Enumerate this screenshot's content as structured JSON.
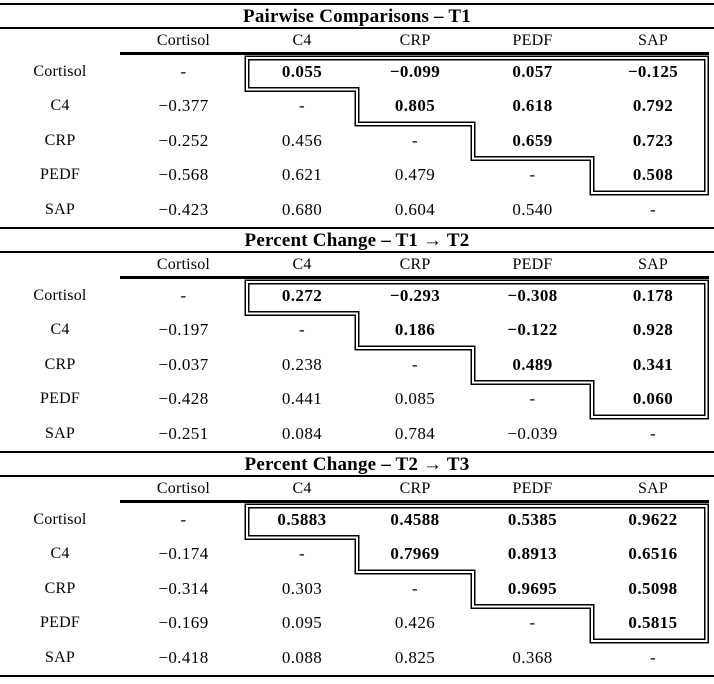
{
  "colors": {
    "background": "#ffffff",
    "ink": "#000000"
  },
  "tables": [
    {
      "title": "Pairwise Comparisons – T1",
      "columns": [
        "Cortisol",
        "C4",
        "CRP",
        "PEDF",
        "SAP"
      ],
      "rows": [
        {
          "label": "Cortisol",
          "values": [
            "-",
            "0.055",
            "−0.099",
            "0.057",
            "−0.125"
          ]
        },
        {
          "label": "C4",
          "values": [
            "−0.377",
            "-",
            "0.805",
            "0.618",
            "0.792"
          ]
        },
        {
          "label": "CRP",
          "values": [
            "−0.252",
            "0.456",
            "-",
            "0.659",
            "0.723"
          ]
        },
        {
          "label": "PEDF",
          "values": [
            "−0.568",
            "0.621",
            "0.479",
            "-",
            "0.508"
          ]
        },
        {
          "label": "SAP",
          "values": [
            "−0.423",
            "0.680",
            "0.604",
            "0.540",
            "-"
          ]
        }
      ]
    },
    {
      "title": "Percent Change – T1 → T2",
      "columns": [
        "Cortisol",
        "C4",
        "CRP",
        "PEDF",
        "SAP"
      ],
      "rows": [
        {
          "label": "Cortisol",
          "values": [
            "-",
            "0.272",
            "−0.293",
            "−0.308",
            "0.178"
          ]
        },
        {
          "label": "C4",
          "values": [
            "−0.197",
            "-",
            "0.186",
            "−0.122",
            "0.928"
          ]
        },
        {
          "label": "CRP",
          "values": [
            "−0.037",
            "0.238",
            "-",
            "0.489",
            "0.341"
          ]
        },
        {
          "label": "PEDF",
          "values": [
            "−0.428",
            "0.441",
            "0.085",
            "-",
            "0.060"
          ]
        },
        {
          "label": "SAP",
          "values": [
            "−0.251",
            "0.084",
            "0.784",
            "−0.039",
            "-"
          ]
        }
      ]
    },
    {
      "title": "Percent Change – T2 → T3",
      "columns": [
        "Cortisol",
        "C4",
        "CRP",
        "PEDF",
        "SAP"
      ],
      "rows": [
        {
          "label": "Cortisol",
          "values": [
            "-",
            "0.5883",
            "0.4588",
            "0.5385",
            "0.9622"
          ]
        },
        {
          "label": "C4",
          "values": [
            "−0.174",
            "-",
            "0.7969",
            "0.8913",
            "0.6516"
          ]
        },
        {
          "label": "CRP",
          "values": [
            "−0.314",
            "0.303",
            "-",
            "0.9695",
            "0.5098"
          ]
        },
        {
          "label": "PEDF",
          "values": [
            "−0.169",
            "0.095",
            "0.426",
            "-",
            "0.5815"
          ]
        },
        {
          "label": "SAP",
          "values": [
            "−0.418",
            "0.088",
            "0.825",
            "0.368",
            "-"
          ]
        }
      ]
    }
  ],
  "chart_data": [
    {
      "type": "table",
      "title": "Pairwise Comparisons – T1",
      "columns": [
        "",
        "Cortisol",
        "C4",
        "CRP",
        "PEDF",
        "SAP"
      ],
      "rows": [
        [
          "Cortisol",
          "-",
          "0.055",
          "−0.099",
          "0.057",
          "−0.125"
        ],
        [
          "C4",
          "−0.377",
          "-",
          "0.805",
          "0.618",
          "0.792"
        ],
        [
          "CRP",
          "−0.252",
          "0.456",
          "-",
          "0.659",
          "0.723"
        ],
        [
          "PEDF",
          "−0.568",
          "0.621",
          "0.479",
          "-",
          "0.508"
        ],
        [
          "SAP",
          "−0.423",
          "0.680",
          "0.604",
          "0.540",
          "-"
        ]
      ],
      "notes": "upper-triangle cells bold, enclosed by stepped double-line outline"
    },
    {
      "type": "table",
      "title": "Percent Change – T1 → T2",
      "columns": [
        "",
        "Cortisol",
        "C4",
        "CRP",
        "PEDF",
        "SAP"
      ],
      "rows": [
        [
          "Cortisol",
          "-",
          "0.272",
          "−0.293",
          "−0.308",
          "0.178"
        ],
        [
          "C4",
          "−0.197",
          "-",
          "0.186",
          "−0.122",
          "0.928"
        ],
        [
          "CRP",
          "−0.037",
          "0.238",
          "-",
          "0.489",
          "0.341"
        ],
        [
          "PEDF",
          "−0.428",
          "0.441",
          "0.085",
          "-",
          "0.060"
        ],
        [
          "SAP",
          "−0.251",
          "0.084",
          "0.784",
          "−0.039",
          "-"
        ]
      ],
      "notes": "upper-triangle cells bold, enclosed by stepped double-line outline"
    },
    {
      "type": "table",
      "title": "Percent Change – T2 → T3",
      "columns": [
        "",
        "Cortisol",
        "C4",
        "CRP",
        "PEDF",
        "SAP"
      ],
      "rows": [
        [
          "Cortisol",
          "-",
          "0.5883",
          "0.4588",
          "0.5385",
          "0.9622"
        ],
        [
          "C4",
          "−0.174",
          "-",
          "0.7969",
          "0.8913",
          "0.6516"
        ],
        [
          "CRP",
          "−0.314",
          "0.303",
          "-",
          "0.9695",
          "0.5098"
        ],
        [
          "PEDF",
          "−0.169",
          "0.095",
          "0.426",
          "-",
          "0.5815"
        ],
        [
          "SAP",
          "−0.418",
          "0.088",
          "0.825",
          "0.368",
          "-"
        ]
      ],
      "notes": "upper-triangle cells bold, enclosed by stepped double-line outline"
    }
  ]
}
